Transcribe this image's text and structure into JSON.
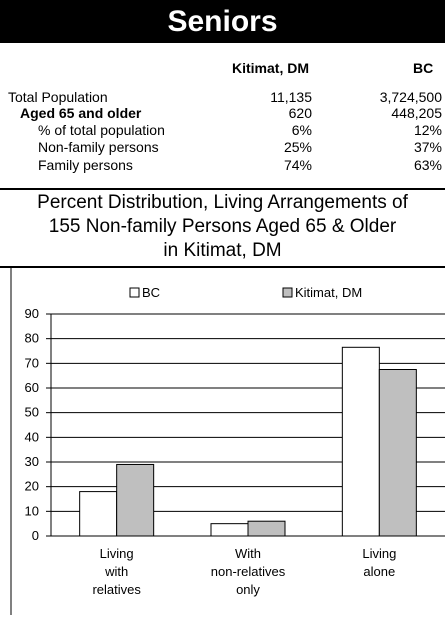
{
  "banner": {
    "title": "Seniors"
  },
  "table": {
    "columns": [
      "Kitimat, DM",
      "BC"
    ],
    "rows": [
      {
        "label": "Total Population",
        "values": [
          "11,135",
          "3,724,500"
        ],
        "style": "normal"
      },
      {
        "label": "Aged 65 and older",
        "values": [
          "620",
          "448,205"
        ],
        "style": "bold"
      },
      {
        "label": "% of total population",
        "values": [
          "6%",
          "12%"
        ],
        "style": "indent"
      },
      {
        "label": "Non-family persons",
        "values": [
          "25%",
          "37%"
        ],
        "style": "indent"
      },
      {
        "label": "Family persons",
        "values": [
          "74%",
          "63%"
        ],
        "style": "indent"
      }
    ]
  },
  "subtitle": {
    "line1": "Percent Distribution, Living Arrangements of",
    "line2": "155 Non-family Persons Aged 65 & Older",
    "line3": "in Kitimat, DM"
  },
  "chart_data": {
    "type": "bar",
    "categories": [
      [
        "Living",
        "with",
        "relatives"
      ],
      [
        "With",
        "non-relatives",
        "only"
      ],
      [
        "Living",
        "alone"
      ]
    ],
    "series": [
      {
        "name": "BC",
        "values": [
          18,
          5,
          76.5
        ],
        "color": "#ffffff"
      },
      {
        "name": "Kitimat, DM",
        "values": [
          29,
          6,
          67.5
        ],
        "color": "#bfbfbf"
      }
    ],
    "ylim": [
      0,
      90
    ],
    "yticks": [
      0,
      10,
      20,
      30,
      40,
      50,
      60,
      70,
      80,
      90
    ],
    "grid": true,
    "legend": "top"
  }
}
